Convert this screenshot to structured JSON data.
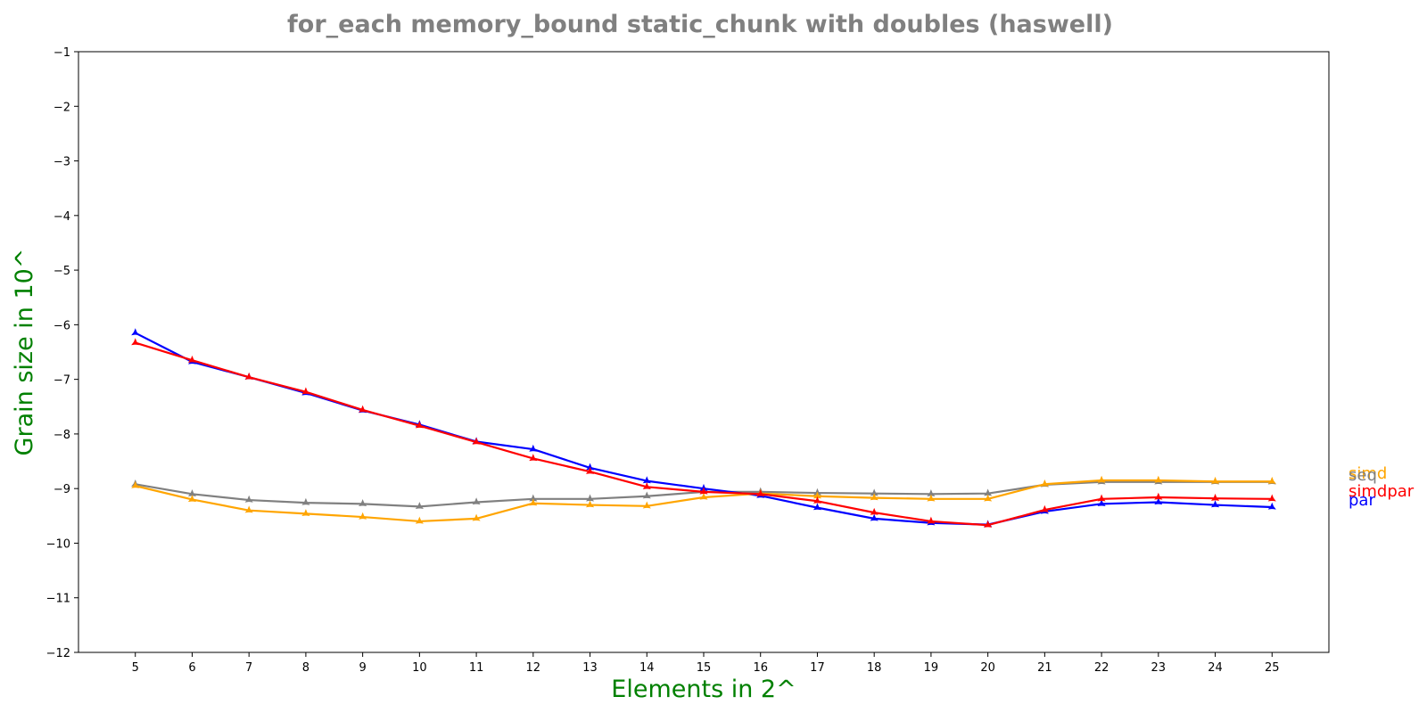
{
  "chart_data": {
    "type": "line",
    "title": "for_each memory_bound static_chunk with doubles  (haswell)",
    "xlabel": "Elements in 2^",
    "ylabel": "Grain size in 10^",
    "xlim": [
      4,
      26
    ],
    "ylim": [
      -12,
      -1
    ],
    "x": [
      5,
      6,
      7,
      8,
      9,
      10,
      11,
      12,
      13,
      14,
      15,
      16,
      17,
      18,
      19,
      20,
      21,
      22,
      23,
      24,
      25
    ],
    "x_ticks": [
      "5",
      "6",
      "7",
      "8",
      "9",
      "10",
      "11",
      "12",
      "13",
      "14",
      "15",
      "16",
      "17",
      "18",
      "19",
      "20",
      "21",
      "22",
      "23",
      "24",
      "25"
    ],
    "y_ticks": [
      "−12",
      "−11",
      "−10",
      "−9",
      "−8",
      "−7",
      "−6",
      "−5",
      "−4",
      "−3",
      "−2",
      "−1"
    ],
    "y_tick_values": [
      -12,
      -11,
      -10,
      -9,
      -8,
      -7,
      -6,
      -5,
      -4,
      -3,
      -2,
      -1
    ],
    "grid": false,
    "marker": "star",
    "series": [
      {
        "name": "seq",
        "color": "#808080",
        "values": [
          -8.92,
          -9.1,
          -9.21,
          -9.26,
          -9.28,
          -9.33,
          -9.25,
          -9.19,
          -9.19,
          -9.14,
          -9.06,
          -9.06,
          -9.08,
          -9.09,
          -9.1,
          -9.09,
          -8.93,
          -8.88,
          -8.88,
          -8.88,
          -8.88
        ]
      },
      {
        "name": "par",
        "color": "#0000ff",
        "values": [
          -6.15,
          -6.68,
          -6.96,
          -7.25,
          -7.57,
          -7.83,
          -8.14,
          -8.28,
          -8.62,
          -8.86,
          -9.0,
          -9.13,
          -9.35,
          -9.55,
          -9.63,
          -9.66,
          -9.42,
          -9.28,
          -9.25,
          -9.3,
          -9.34
        ]
      },
      {
        "name": "simd",
        "color": "#ffa500",
        "values": [
          -8.95,
          -9.2,
          -9.4,
          -9.46,
          -9.52,
          -9.6,
          -9.55,
          -9.27,
          -9.3,
          -9.32,
          -9.16,
          -9.09,
          -9.14,
          -9.17,
          -9.19,
          -9.19,
          -8.92,
          -8.85,
          -8.85,
          -8.87,
          -8.87
        ]
      },
      {
        "name": "simdpar",
        "color": "#ff0000",
        "values": [
          -6.33,
          -6.65,
          -6.96,
          -7.23,
          -7.56,
          -7.85,
          -8.15,
          -8.45,
          -8.69,
          -8.97,
          -9.06,
          -9.1,
          -9.23,
          -9.44,
          -9.6,
          -9.67,
          -9.39,
          -9.19,
          -9.16,
          -9.18,
          -9.19
        ]
      }
    ],
    "legend": [
      {
        "label": "simd",
        "color": "#ffa500"
      },
      {
        "label": "seq",
        "color": "#808080"
      },
      {
        "label": "simdpar",
        "color": "#ff0000"
      },
      {
        "label": "par",
        "color": "#0000ff"
      }
    ]
  }
}
